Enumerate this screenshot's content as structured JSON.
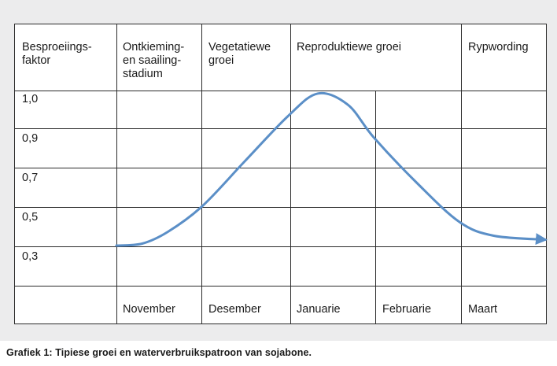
{
  "chart_data": {
    "type": "line",
    "header": {
      "ylabel": "Besproeiings-\nfaktor",
      "stages": [
        "Ontkieming-\nen saailing-\nstadium",
        "Vegetatiewe\ngroei",
        "Reproduktiewe groei",
        "Rypwording"
      ]
    },
    "yticks": [
      "1,0",
      "0,9",
      "0,7",
      "0,5",
      "0,3"
    ],
    "categories": [
      "November",
      "Desember",
      "Januarie",
      "Februarie",
      "Maart"
    ],
    "series": [
      {
        "color": "#5b8fc7",
        "points": [
          {
            "x": 0.0,
            "y": 0.3
          },
          {
            "x": 0.3,
            "y": 0.31
          },
          {
            "x": 0.6,
            "y": 0.37
          },
          {
            "x": 1.0,
            "y": 0.5
          },
          {
            "x": 1.5,
            "y": 0.73
          },
          {
            "x": 2.0,
            "y": 0.93
          },
          {
            "x": 2.35,
            "y": 0.99
          },
          {
            "x": 2.7,
            "y": 0.96
          },
          {
            "x": 3.0,
            "y": 0.85
          },
          {
            "x": 3.5,
            "y": 0.62
          },
          {
            "x": 4.0,
            "y": 0.42
          },
          {
            "x": 4.4,
            "y": 0.35
          },
          {
            "x": 5.0,
            "y": 0.33
          }
        ]
      }
    ]
  },
  "caption": "Grafiek 1: Tipiese groei en waterverbruikspatroon van sojabone."
}
